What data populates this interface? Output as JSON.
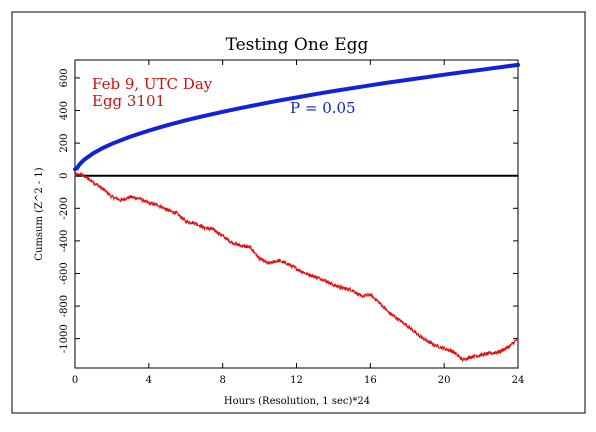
{
  "chart_data": {
    "type": "line",
    "title": "Testing One Egg",
    "xlabel": "Hours (Resolution, 1 sec)*24",
    "ylabel": "Cumsum (Z^2 - 1)",
    "xlim": [
      0,
      24
    ],
    "ylim": [
      -1180,
      710
    ],
    "x_ticks": [
      0,
      4,
      8,
      12,
      16,
      20,
      24
    ],
    "y_ticks": [
      600,
      400,
      200,
      0,
      -200,
      -400,
      -600,
      -800,
      -1000
    ],
    "grid": false,
    "annotations": {
      "date": "Feb 9, UTC Day",
      "egg": "Egg 3101",
      "probability": "P = 0.05"
    },
    "colors": {
      "cumsum": "#dd1111",
      "envelope": "#1122dd",
      "baseline": "#000000",
      "annotation_red": "#cc1111",
      "annotation_blue": "#1122cc"
    },
    "series": [
      {
        "role": "cumsum",
        "x": [
          0,
          0.3,
          0.6,
          1.0,
          1.5,
          2.0,
          2.5,
          3.0,
          3.5,
          4.0,
          4.5,
          5.0,
          5.5,
          6.0,
          6.5,
          7.0,
          7.5,
          8.0,
          8.5,
          9.0,
          9.5,
          10.0,
          10.5,
          11.0,
          11.5,
          12.0,
          12.5,
          13.0,
          13.5,
          14.0,
          14.5,
          15.0,
          15.5,
          16.0,
          16.5,
          17.0,
          17.5,
          18.0,
          18.5,
          19.0,
          19.5,
          20.0,
          20.5,
          21.0,
          21.5,
          22.0,
          22.5,
          23.0,
          23.5,
          24.0
        ],
        "y": [
          0,
          10,
          -10,
          -40,
          -80,
          -130,
          -150,
          -130,
          -140,
          -170,
          -180,
          -210,
          -230,
          -280,
          -290,
          -320,
          -330,
          -370,
          -410,
          -430,
          -440,
          -510,
          -540,
          -520,
          -540,
          -570,
          -600,
          -620,
          -640,
          -670,
          -690,
          -700,
          -740,
          -730,
          -780,
          -840,
          -880,
          -920,
          -970,
          -1010,
          -1040,
          -1060,
          -1080,
          -1130,
          -1110,
          -1100,
          -1090,
          -1080,
          -1050,
          -1000
        ]
      },
      {
        "role": "envelope",
        "x": [
          0,
          0.1,
          0.25,
          0.5,
          1,
          1.5,
          2,
          3,
          4,
          5,
          6,
          7,
          8,
          9,
          10,
          11,
          12,
          13,
          14,
          15,
          16,
          17,
          18,
          19,
          20,
          21,
          22,
          23,
          24
        ],
        "y": [
          40,
          45,
          70,
          98,
          139,
          170,
          196,
          240,
          277,
          310,
          340,
          367,
          392,
          416,
          438,
          460,
          480,
          500,
          519,
          537,
          555,
          572,
          588,
          604,
          620,
          635,
          650,
          665,
          680
        ]
      }
    ]
  }
}
